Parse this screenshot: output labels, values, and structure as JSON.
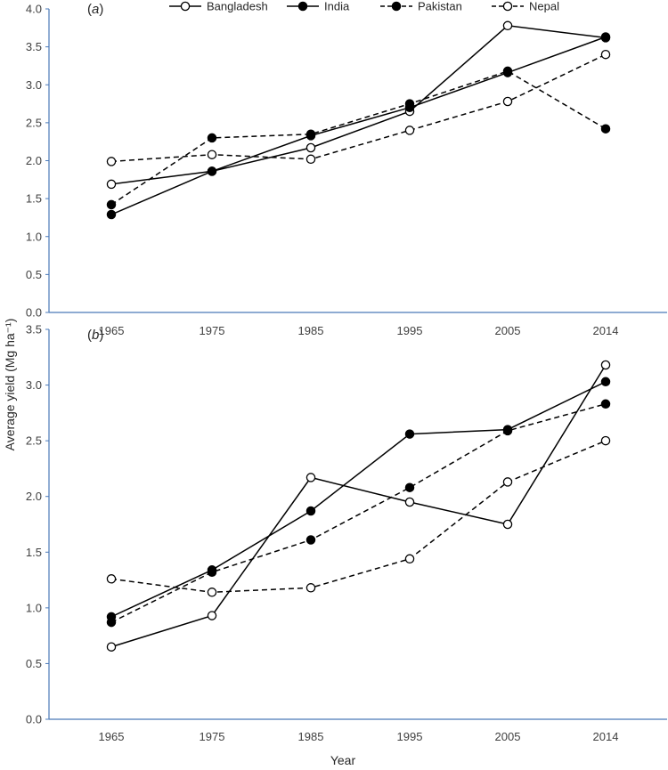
{
  "chart_data": {
    "type": "line",
    "ylabel": "Average yield (Mg ha⁻¹)",
    "xlabel": "Year",
    "legend_position": "top",
    "legend": [
      {
        "name": "Bangladesh",
        "marker": "open",
        "line": "solid"
      },
      {
        "name": "India",
        "marker": "filled",
        "line": "solid"
      },
      {
        "name": "Pakistan",
        "marker": "filled",
        "line": "dashed"
      },
      {
        "name": "Nepal",
        "marker": "open",
        "line": "dashed"
      }
    ],
    "panels": [
      {
        "label_open": "(",
        "label_letter": "a",
        "label_close": ")",
        "categories": [
          "1965",
          "1975",
          "1985",
          "1995",
          "2005",
          "2014"
        ],
        "ylim": [
          0,
          4.0
        ],
        "yticks": [
          "0.0",
          "0.5",
          "1.0",
          "1.5",
          "2.0",
          "2.5",
          "3.0",
          "3.5",
          "4.0"
        ],
        "series": [
          {
            "name": "Bangladesh",
            "values": [
              1.69,
              1.86,
              2.17,
              2.65,
              3.78,
              3.62
            ]
          },
          {
            "name": "India",
            "values": [
              1.29,
              1.86,
              2.33,
              2.7,
              3.16,
              3.63
            ]
          },
          {
            "name": "Pakistan",
            "values": [
              1.42,
              2.3,
              2.35,
              2.75,
              3.18,
              2.42
            ]
          },
          {
            "name": "Nepal",
            "values": [
              1.99,
              2.08,
              2.02,
              2.4,
              2.78,
              3.4
            ]
          }
        ]
      },
      {
        "label_open": "(",
        "label_letter": "b",
        "label_close": ")",
        "categories": [
          "1965",
          "1975",
          "1985",
          "1995",
          "2005",
          "2014"
        ],
        "ylim": [
          0,
          3.5
        ],
        "yticks": [
          "0.0",
          "0.5",
          "1.0",
          "1.5",
          "2.0",
          "2.5",
          "3.0",
          "3.5"
        ],
        "series": [
          {
            "name": "Bangladesh",
            "values": [
              0.65,
              0.93,
              2.17,
              1.95,
              1.75,
              3.18
            ]
          },
          {
            "name": "India",
            "values": [
              0.92,
              1.34,
              1.87,
              2.56,
              2.6,
              3.03
            ]
          },
          {
            "name": "Pakistan",
            "values": [
              0.87,
              1.32,
              1.61,
              2.08,
              2.59,
              2.83
            ]
          },
          {
            "name": "Nepal",
            "values": [
              1.26,
              1.14,
              1.18,
              1.44,
              2.13,
              2.5
            ]
          }
        ]
      }
    ]
  }
}
